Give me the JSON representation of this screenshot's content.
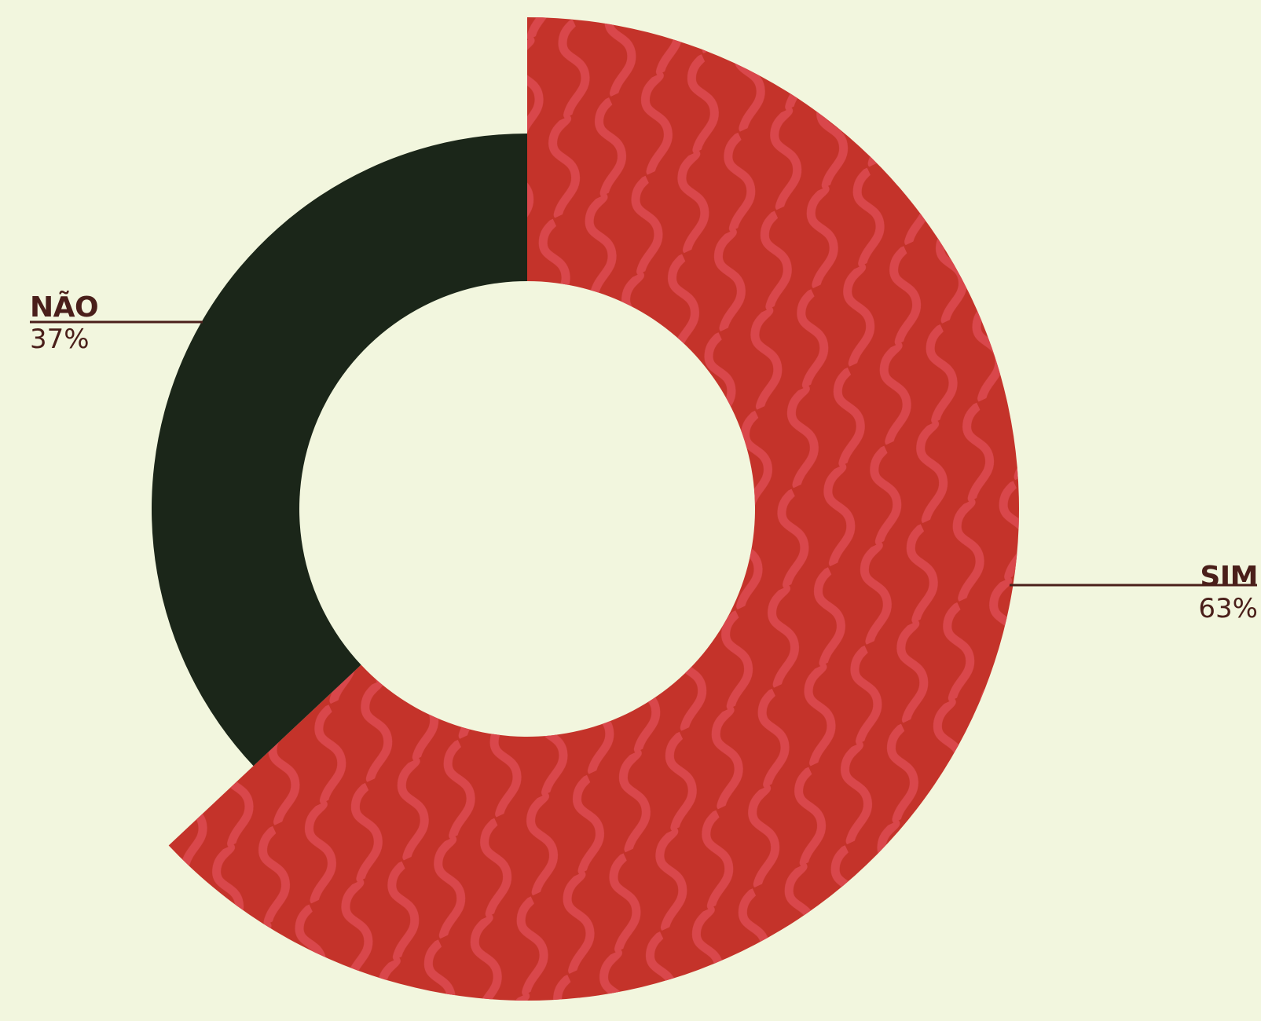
{
  "chart_data": {
    "type": "pie",
    "style": "donut",
    "slices": [
      {
        "label": "SIM",
        "value": 63,
        "display": "63%",
        "color": "#c4332a",
        "pattern": "wavy-lines",
        "pattern_color": "#d9474b",
        "emphasized": true
      },
      {
        "label": "NÃO",
        "value": 37,
        "display": "37%",
        "color": "#1b2619"
      }
    ],
    "background": "#f2f6de",
    "text_color": "#4a1f1a"
  }
}
